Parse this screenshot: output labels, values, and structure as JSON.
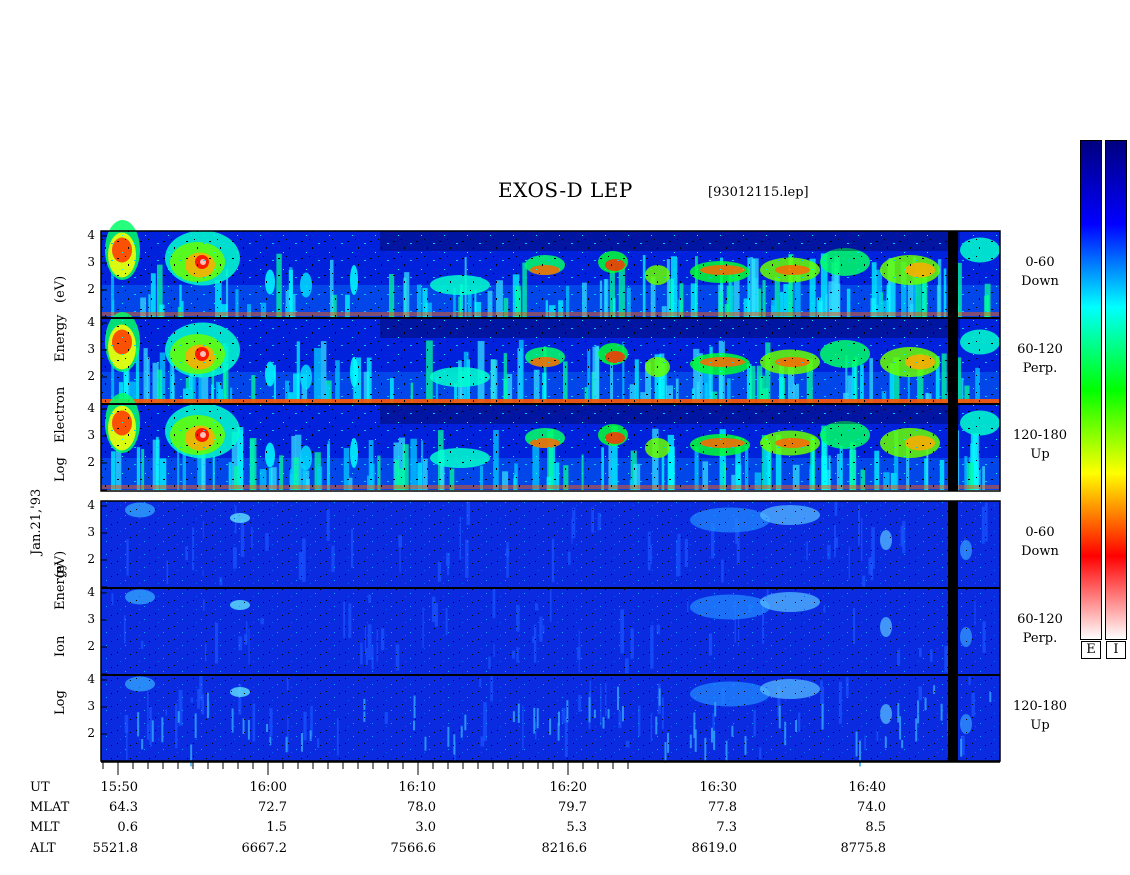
{
  "chart_data": {
    "type": "heatmap",
    "title": "EXOS-D LEP",
    "file_label": "[93012115.lep]",
    "sections": [
      {
        "name": "electron",
        "ylabel_lines": [
          "Log",
          "Electron",
          "Energy",
          "(eV)"
        ],
        "panels": [
          {
            "pitch": "0-60",
            "dir": "Down"
          },
          {
            "pitch": "60-120",
            "dir": "Perp."
          },
          {
            "pitch": "120-180",
            "dir": "Up"
          }
        ]
      },
      {
        "name": "ion",
        "ylabel_lines": [
          "Log",
          "Ion",
          "Energy",
          "(eV)"
        ],
        "panels": [
          {
            "pitch": "0-60",
            "dir": "Down"
          },
          {
            "pitch": "60-120",
            "dir": "Perp."
          },
          {
            "pitch": "120-180",
            "dir": "Up"
          }
        ]
      }
    ],
    "yticks": [
      "4",
      "3",
      "2"
    ],
    "date_label": "Jan.21,'93",
    "colorbar_labels": [
      "E",
      "I"
    ],
    "colorbar_colors": [
      "#ffffff",
      "#ff0000",
      "#ffff00",
      "#00ff00",
      "#00ffff",
      "#0000ff",
      "#000080"
    ],
    "time_axis": {
      "rows": [
        {
          "name": "UT",
          "values": [
            "15:50",
            "16:00",
            "16:10",
            "16:20",
            "16:30",
            "16:40"
          ]
        },
        {
          "name": "MLAT",
          "values": [
            "64.3",
            "72.7",
            "78.0",
            "79.7",
            "77.8",
            "74.0"
          ]
        },
        {
          "name": "MLT",
          "values": [
            "0.6",
            "1.5",
            "3.0",
            "5.3",
            "7.3",
            "8.5"
          ]
        },
        {
          "name": "ALT",
          "values": [
            "5521.8",
            "6667.2",
            "7566.6",
            "8216.6",
            "8619.0",
            "8775.8"
          ]
        }
      ]
    }
  }
}
